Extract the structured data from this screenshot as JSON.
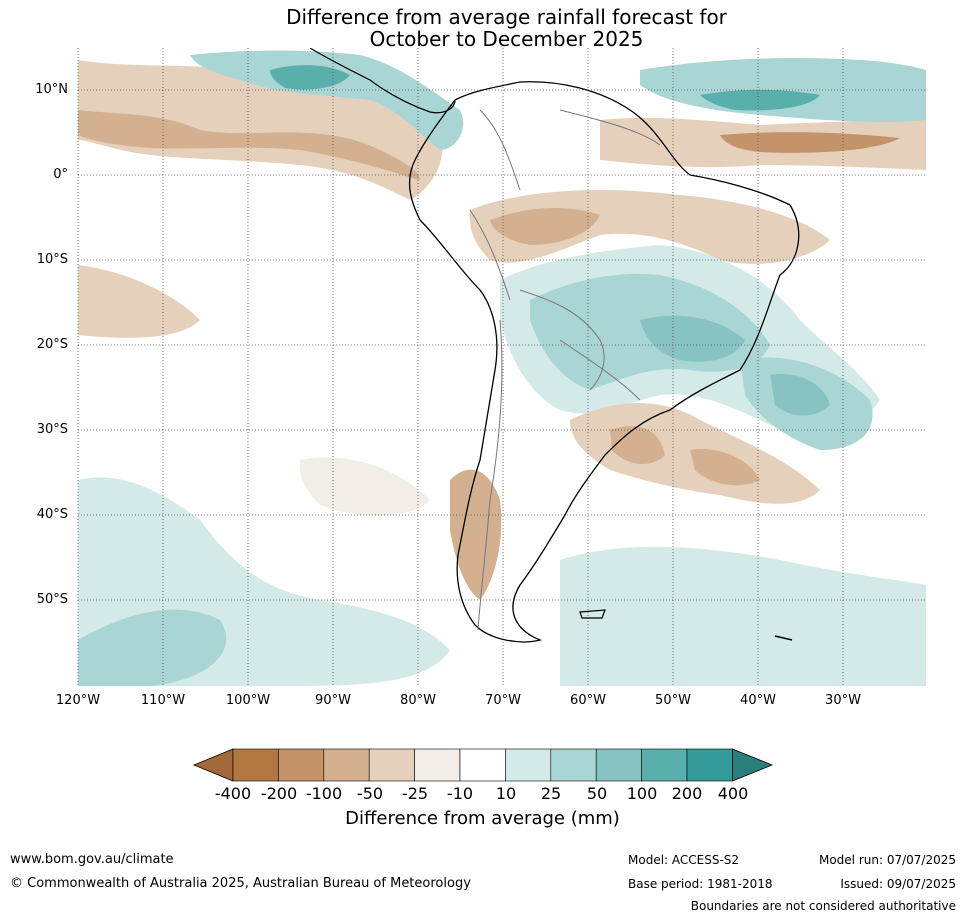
{
  "title_line1": "Difference from average rainfall forecast for",
  "title_line2": "October to December 2025",
  "lat_labels": [
    "10°N",
    "0°",
    "10°S",
    "20°S",
    "30°S",
    "40°S",
    "50°S"
  ],
  "lon_labels": [
    "120°W",
    "110°W",
    "100°W",
    "90°W",
    "80°W",
    "70°W",
    "60°W",
    "50°W",
    "40°W",
    "30°W"
  ],
  "colorbar": {
    "title": "Difference from average (mm)",
    "tick_labels": [
      "-400",
      "-200",
      "-100",
      "-50",
      "-25",
      "-10",
      "10",
      "25",
      "50",
      "100",
      "200",
      "400"
    ],
    "colors": [
      "#a3693a",
      "#b07840",
      "#c3946a",
      "#d3b08f",
      "#e5d0bb",
      "#f2ede6",
      "#ffffff",
      "#d4eae8",
      "#a9d6d4",
      "#86c3c1",
      "#5aafad",
      "#349b98",
      "#2a7f7d"
    ]
  },
  "footer": {
    "website": "www.bom.gov.au/climate",
    "copyright": "© Commonwealth of Australia 2025, Australian Bureau of Meteorology",
    "model": "Model: ACCESS-S2",
    "base_period": "Base period: 1981-2018",
    "model_run": "Model run: 07/07/2025",
    "issued": "Issued: 09/07/2025",
    "disclaimer": "Boundaries are not considered authoritative"
  }
}
